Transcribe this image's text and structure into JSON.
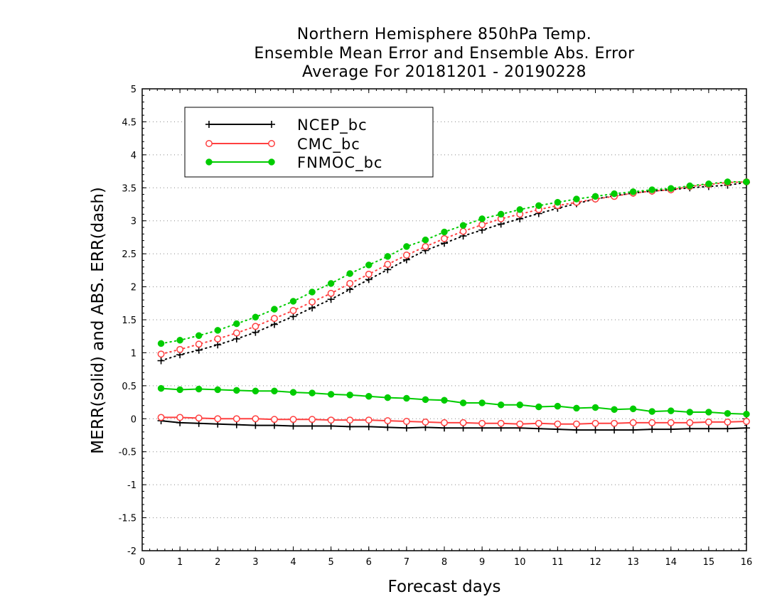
{
  "chart_data": {
    "type": "line",
    "title": [
      "Northern Hemisphere 850hPa Temp.",
      "Ensemble Mean Error and Ensemble Abs. Error",
      "Average For 20181201 - 20190228"
    ],
    "xlabel": "Forecast days",
    "ylabel": "MERR(solid) and ABS. ERR(dash)",
    "xlim": [
      0,
      16
    ],
    "ylim": [
      -2,
      5
    ],
    "xticks": [
      "0",
      "1",
      "2",
      "3",
      "4",
      "5",
      "6",
      "7",
      "8",
      "9",
      "10",
      "11",
      "12",
      "13",
      "14",
      "15",
      "16"
    ],
    "yticks": [
      "-2",
      "-1.5",
      "-1",
      "-0.5",
      "0",
      "0.5",
      "1",
      "1.5",
      "2",
      "2.5",
      "3",
      "3.5",
      "4",
      "4.5",
      "5"
    ],
    "grid": true,
    "legend_position": "top-left",
    "x": [
      0.5,
      1,
      1.5,
      2,
      2.5,
      3,
      3.5,
      4,
      4.5,
      5,
      5.5,
      6,
      6.5,
      7,
      7.5,
      8,
      8.5,
      9,
      9.5,
      10,
      10.5,
      11,
      11.5,
      12,
      12.5,
      13,
      13.5,
      14,
      14.5,
      15,
      15.5,
      16
    ],
    "series": [
      {
        "name": "NCEP_bc",
        "color": "#000000",
        "marker": "plus",
        "merr": [
          -0.03,
          -0.06,
          -0.07,
          -0.08,
          -0.09,
          -0.1,
          -0.1,
          -0.11,
          -0.11,
          -0.11,
          -0.12,
          -0.12,
          -0.13,
          -0.14,
          -0.13,
          -0.14,
          -0.14,
          -0.14,
          -0.14,
          -0.14,
          -0.15,
          -0.16,
          -0.17,
          -0.17,
          -0.17,
          -0.17,
          -0.16,
          -0.16,
          -0.15,
          -0.15,
          -0.15,
          -0.14
        ],
        "abserr": [
          0.88,
          0.97,
          1.04,
          1.12,
          1.21,
          1.31,
          1.43,
          1.55,
          1.68,
          1.81,
          1.96,
          2.11,
          2.26,
          2.41,
          2.55,
          2.66,
          2.77,
          2.86,
          2.95,
          3.03,
          3.11,
          3.19,
          3.26,
          3.33,
          3.38,
          3.42,
          3.45,
          3.47,
          3.5,
          3.52,
          3.54,
          3.58
        ]
      },
      {
        "name": "CMC_bc",
        "color": "#ff4040",
        "marker": "open-circle",
        "merr": [
          0.02,
          0.02,
          0.01,
          0.0,
          0.0,
          0.0,
          -0.01,
          -0.01,
          -0.01,
          -0.02,
          -0.02,
          -0.02,
          -0.03,
          -0.04,
          -0.05,
          -0.06,
          -0.06,
          -0.07,
          -0.07,
          -0.08,
          -0.07,
          -0.08,
          -0.08,
          -0.07,
          -0.07,
          -0.06,
          -0.06,
          -0.06,
          -0.06,
          -0.05,
          -0.05,
          -0.04
        ],
        "abserr": [
          0.98,
          1.05,
          1.13,
          1.21,
          1.3,
          1.4,
          1.52,
          1.64,
          1.77,
          1.9,
          2.05,
          2.19,
          2.34,
          2.48,
          2.61,
          2.73,
          2.84,
          2.94,
          3.03,
          3.1,
          3.17,
          3.23,
          3.28,
          3.33,
          3.37,
          3.42,
          3.45,
          3.47,
          3.52,
          3.55,
          3.58,
          3.59
        ]
      },
      {
        "name": "FNMOC_bc",
        "color": "#00cc00",
        "marker": "filled-circle",
        "merr": [
          0.46,
          0.44,
          0.45,
          0.44,
          0.43,
          0.42,
          0.42,
          0.4,
          0.39,
          0.37,
          0.36,
          0.34,
          0.32,
          0.31,
          0.29,
          0.28,
          0.24,
          0.24,
          0.21,
          0.21,
          0.18,
          0.19,
          0.16,
          0.17,
          0.14,
          0.15,
          0.11,
          0.12,
          0.1,
          0.1,
          0.08,
          0.07
        ],
        "abserr": [
          1.14,
          1.19,
          1.26,
          1.34,
          1.44,
          1.54,
          1.66,
          1.78,
          1.92,
          2.05,
          2.2,
          2.33,
          2.46,
          2.61,
          2.71,
          2.83,
          2.93,
          3.03,
          3.1,
          3.17,
          3.23,
          3.28,
          3.33,
          3.37,
          3.41,
          3.44,
          3.47,
          3.49,
          3.53,
          3.56,
          3.59,
          3.59
        ]
      }
    ]
  }
}
